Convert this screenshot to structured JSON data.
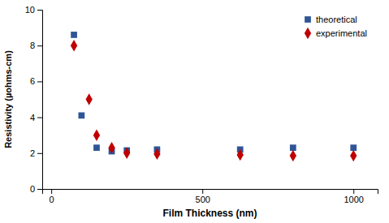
{
  "chart_data": {
    "type": "scatter",
    "xlabel": "Film Thickness  (nm)",
    "ylabel": "Resistivity (µohms-cm)",
    "series": [
      {
        "name": "theoretical",
        "color": "#2f5597",
        "marker": "square",
        "x": [
          75,
          100,
          150,
          200,
          250,
          350,
          625,
          800,
          1000
        ],
        "values": [
          8.6,
          4.1,
          2.3,
          2.1,
          2.15,
          2.2,
          2.2,
          2.3,
          2.3
        ]
      },
      {
        "name": "experimental",
        "color": "#c00000",
        "marker": "diamond",
        "x": [
          75,
          125,
          150,
          200,
          250,
          350,
          625,
          800,
          1000
        ],
        "values": [
          8.0,
          5.0,
          3.0,
          2.3,
          2.0,
          1.95,
          1.9,
          1.85,
          1.85
        ]
      }
    ],
    "xlim": [
      -30,
      1080
    ],
    "ylim": [
      0,
      10
    ],
    "xticks": [
      0,
      500,
      1000
    ],
    "yticks": [
      0,
      2,
      4,
      6,
      8,
      10
    ],
    "grid": false,
    "legend": "upper right"
  }
}
